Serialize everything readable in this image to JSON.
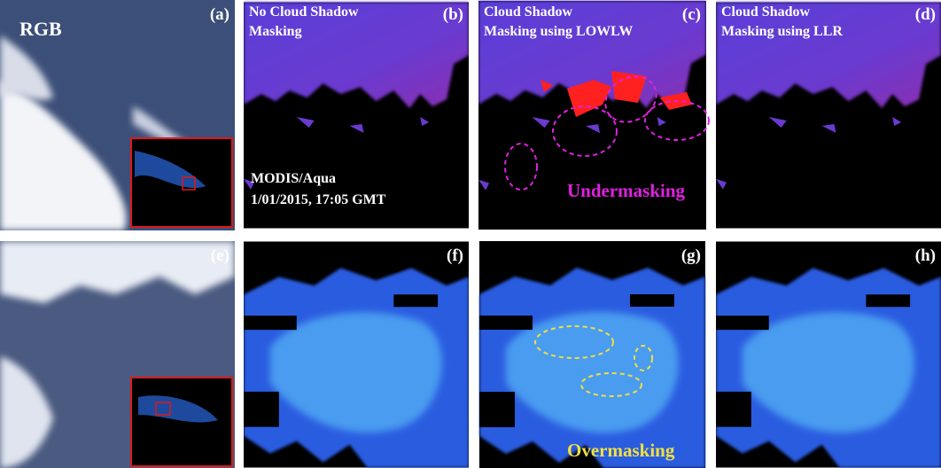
{
  "panels": [
    {
      "label": "(a)",
      "title": [
        "RGB"
      ]
    },
    {
      "label": "(b)",
      "title": [
        "No Cloud Shadow",
        "Masking"
      ],
      "notes": [
        "MODIS/Aqua",
        "1/01/2015, 17:05 GMT"
      ]
    },
    {
      "label": "(c)",
      "title": [
        "Cloud Shadow",
        "Masking using LOWLW"
      ],
      "notes": [
        "Undermasking"
      ]
    },
    {
      "label": "(d)",
      "title": [
        "Cloud Shadow",
        "Masking using LLR"
      ]
    },
    {
      "label": "(e)"
    },
    {
      "label": "(f)"
    },
    {
      "label": "(g)",
      "notes": [
        "Overmasking"
      ]
    },
    {
      "label": "(h)"
    }
  ]
}
